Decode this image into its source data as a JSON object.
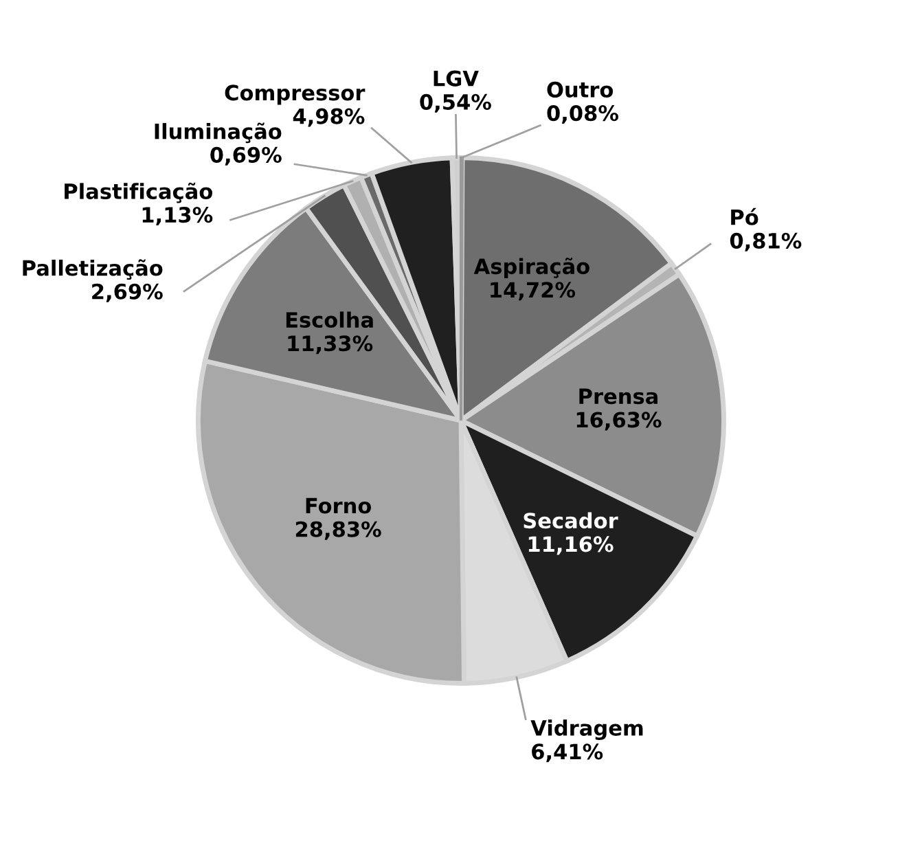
{
  "chart_data": {
    "type": "pie",
    "categories": [
      "Outro",
      "Aspiração",
      "Pó",
      "Prensa",
      "Secador",
      "Vidragem",
      "Forno",
      "Escolha",
      "Palletização",
      "Plastificação",
      "Iluminação",
      "Compressor",
      "LGV"
    ],
    "values": [
      0.08,
      14.72,
      0.81,
      16.63,
      11.16,
      6.41,
      28.83,
      11.33,
      2.69,
      1.13,
      0.69,
      4.98,
      0.54
    ],
    "colors": [
      "#9a9a9a",
      "#6e6e6e",
      "#b4b4b4",
      "#8c8c8c",
      "#1f1f1f",
      "#dcdcdc",
      "#a8a8a8",
      "#7c7c7c",
      "#505050",
      "#b0b0b0",
      "#6a6a6a",
      "#202020",
      "#cfcfcf"
    ],
    "value_labels": [
      "0,08%",
      "14,72%",
      "0,81%",
      "16,63%",
      "11,16%",
      "6,41%",
      "28,83%",
      "11,33%",
      "2,69%",
      "1,13%",
      "0,69%",
      "4,98%",
      "0,54%"
    ],
    "legend": false
  }
}
